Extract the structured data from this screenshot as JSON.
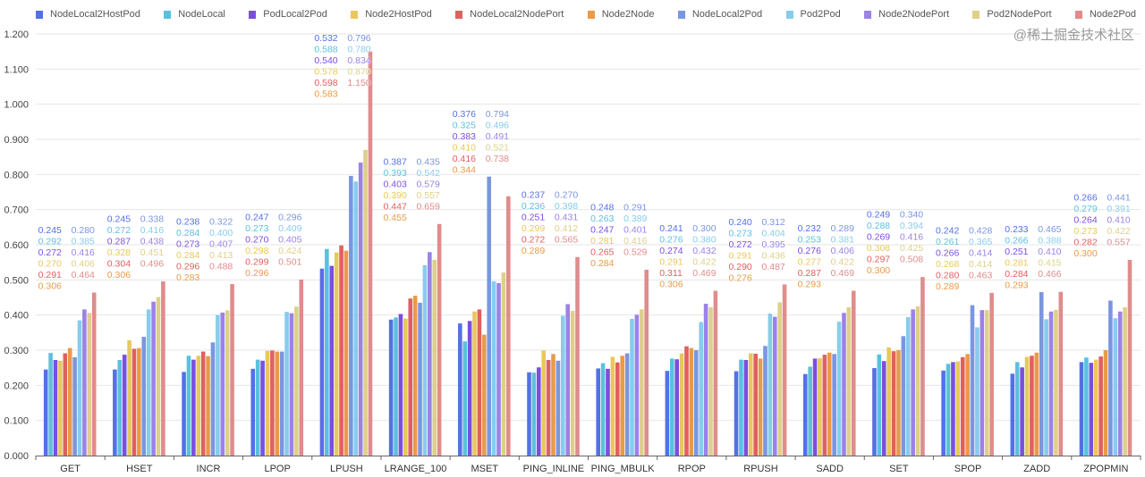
{
  "chart_data": {
    "type": "bar",
    "title": "",
    "xlabel": "",
    "ylabel": "",
    "ylim": [
      0,
      1.2
    ],
    "yticks": [
      "0.000",
      "0.100",
      "0.200",
      "0.300",
      "0.400",
      "0.500",
      "0.600",
      "0.700",
      "0.800",
      "0.900",
      "1.000",
      "1.100",
      "1.200"
    ],
    "grid": true,
    "legend_position": "top",
    "data_labels": true,
    "categories": [
      "GET",
      "HSET",
      "INCR",
      "LPOP",
      "LPUSH",
      "LRANGE_100",
      "MSET",
      "PING_INLINE",
      "PING_MBULK",
      "RPOP",
      "RPUSH",
      "SADD",
      "SET",
      "SPOP",
      "ZADD",
      "ZPOPMIN"
    ],
    "series": [
      {
        "name": "NodeLocal2HostPod",
        "color": "#5470e8",
        "values": [
          0.245,
          0.245,
          0.238,
          0.247,
          0.532,
          0.387,
          0.376,
          0.237,
          0.248,
          0.241,
          0.24,
          0.232,
          0.249,
          0.242,
          0.233,
          0.266
        ]
      },
      {
        "name": "NodeLocal",
        "color": "#5bc0de",
        "values": [
          0.292,
          0.272,
          0.284,
          0.273,
          0.588,
          0.393,
          0.325,
          0.236,
          0.263,
          0.276,
          0.273,
          0.253,
          0.288,
          0.261,
          0.266,
          0.279
        ]
      },
      {
        "name": "PodLocal2Pod",
        "color": "#7a4fe0",
        "values": [
          0.272,
          0.287,
          0.273,
          0.27,
          0.54,
          0.403,
          0.383,
          0.251,
          0.247,
          0.274,
          0.272,
          0.276,
          0.269,
          0.266,
          0.251,
          0.264
        ]
      },
      {
        "name": "Node2HostPod",
        "color": "#e8c85a",
        "values": [
          0.27,
          0.328,
          0.284,
          0.298,
          0.578,
          0.39,
          0.41,
          0.299,
          0.281,
          0.291,
          0.291,
          0.277,
          0.308,
          0.268,
          0.281,
          0.273
        ]
      },
      {
        "name": "NodeLocal2NodePort",
        "color": "#e06060",
        "values": [
          0.291,
          0.304,
          0.296,
          0.299,
          0.598,
          0.447,
          0.416,
          0.272,
          0.265,
          0.311,
          0.29,
          0.287,
          0.297,
          0.28,
          0.284,
          0.282
        ]
      },
      {
        "name": "Node2Node",
        "color": "#ea9a48",
        "values": [
          0.306,
          0.306,
          0.283,
          0.296,
          0.583,
          0.455,
          0.344,
          0.289,
          0.284,
          0.306,
          0.276,
          0.293,
          0.3,
          0.289,
          0.293,
          0.3
        ]
      },
      {
        "name": "NodeLocal2Pod",
        "color": "#7b96e0",
        "values": [
          0.28,
          0.338,
          0.322,
          0.296,
          0.796,
          0.435,
          0.794,
          0.27,
          0.291,
          0.3,
          0.312,
          0.289,
          0.34,
          0.428,
          0.465,
          0.441
        ]
      },
      {
        "name": "Pod2Pod",
        "color": "#87ccec",
        "values": [
          0.385,
          0.416,
          0.4,
          0.409,
          0.78,
          0.542,
          0.496,
          0.398,
          0.389,
          0.38,
          0.404,
          0.381,
          0.394,
          0.365,
          0.388,
          0.391
        ]
      },
      {
        "name": "Node2NodePort",
        "color": "#9b82e8",
        "values": [
          0.416,
          0.438,
          0.407,
          0.405,
          0.834,
          0.579,
          0.491,
          0.431,
          0.401,
          0.432,
          0.395,
          0.406,
          0.416,
          0.414,
          0.41,
          0.41
        ]
      },
      {
        "name": "Pod2NodePort",
        "color": "#ddd08a",
        "values": [
          0.406,
          0.451,
          0.413,
          0.424,
          0.87,
          0.557,
          0.521,
          0.412,
          0.416,
          0.422,
          0.436,
          0.422,
          0.425,
          0.414,
          0.415,
          0.422
        ]
      },
      {
        "name": "Node2Pod",
        "color": "#e08c8c",
        "values": [
          0.464,
          0.496,
          0.488,
          0.501,
          1.15,
          0.659,
          0.738,
          0.565,
          0.529,
          0.469,
          0.487,
          0.469,
          0.508,
          0.463,
          0.466,
          0.557
        ]
      }
    ]
  },
  "watermark": "@稀土掘金技术社区"
}
